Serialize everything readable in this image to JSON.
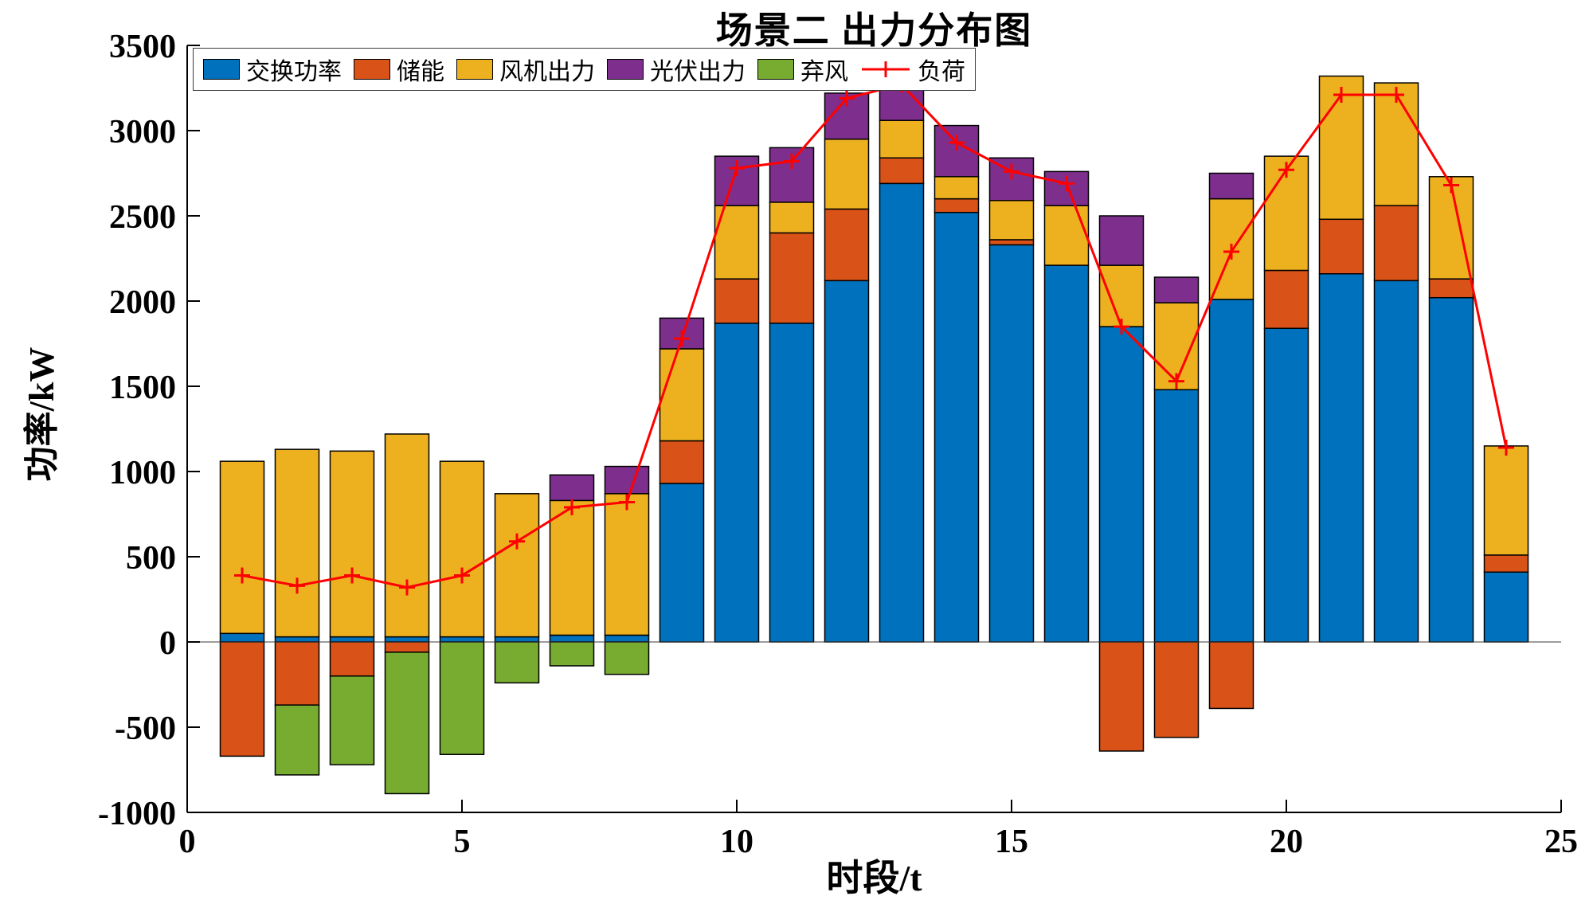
{
  "figure": {
    "title": "场景二  出力分布图",
    "xlabel": "时段/t",
    "ylabel": "功率/kW"
  },
  "chart_data": {
    "type": "bar",
    "stacked": true,
    "title": "场景二  出力分布图",
    "xlabel": "时段/t",
    "ylabel": "功率/kW",
    "xlim": [
      0,
      25
    ],
    "ylim": [
      -1000,
      3500
    ],
    "xticks": [
      0,
      5,
      10,
      15,
      20,
      25
    ],
    "yticks": [
      -1000,
      -500,
      0,
      500,
      1000,
      1500,
      2000,
      2500,
      3000,
      3500
    ],
    "grid": false,
    "legend_position": "top-left-horizontal",
    "bar_edge_color": "#000000",
    "x": [
      1,
      2,
      3,
      4,
      5,
      6,
      7,
      8,
      9,
      10,
      11,
      12,
      13,
      14,
      15,
      16,
      17,
      18,
      19,
      20,
      21,
      22,
      23,
      24
    ],
    "series": [
      {
        "id": "exchange-power",
        "name": "交换功率",
        "color": "#0072BD",
        "values": [
          50,
          30,
          30,
          30,
          30,
          30,
          40,
          40,
          930,
          1870,
          1870,
          2120,
          2690,
          2520,
          2330,
          2210,
          1850,
          1480,
          2010,
          1840,
          2160,
          2120,
          2020,
          410
        ]
      },
      {
        "id": "storage",
        "name": "储能",
        "color": "#D95319",
        "values": [
          -670,
          -370,
          -200,
          -60,
          0,
          0,
          0,
          0,
          250,
          260,
          530,
          420,
          150,
          80,
          30,
          0,
          -640,
          -560,
          -390,
          340,
          320,
          440,
          110,
          100
        ]
      },
      {
        "id": "wind-output",
        "name": "风机出力",
        "color": "#EDB120",
        "values": [
          1010,
          1100,
          1090,
          1190,
          1030,
          840,
          790,
          830,
          540,
          430,
          180,
          410,
          220,
          130,
          230,
          350,
          360,
          510,
          590,
          670,
          840,
          720,
          600,
          640
        ]
      },
      {
        "id": "pv-output",
        "name": "光伏出力",
        "color": "#7E2F8E",
        "values": [
          0,
          0,
          0,
          0,
          0,
          0,
          150,
          160,
          180,
          290,
          320,
          270,
          320,
          300,
          250,
          200,
          290,
          150,
          150,
          0,
          0,
          0,
          0,
          0
        ]
      },
      {
        "id": "curtailed-wind",
        "name": "弃风",
        "color": "#77AC30",
        "values": [
          0,
          -410,
          -520,
          -830,
          -660,
          -240,
          -140,
          -190,
          0,
          0,
          0,
          0,
          0,
          0,
          0,
          0,
          0,
          0,
          0,
          0,
          0,
          0,
          0,
          0
        ]
      }
    ],
    "line_series": {
      "id": "load",
      "name": "负荷",
      "color": "#FF0000",
      "marker": "+",
      "values": [
        390,
        330,
        390,
        320,
        390,
        590,
        790,
        820,
        1780,
        2780,
        2820,
        3190,
        3270,
        2930,
        2760,
        2690,
        1850,
        1530,
        2290,
        2770,
        3210,
        3210,
        2680,
        1140
      ]
    }
  }
}
